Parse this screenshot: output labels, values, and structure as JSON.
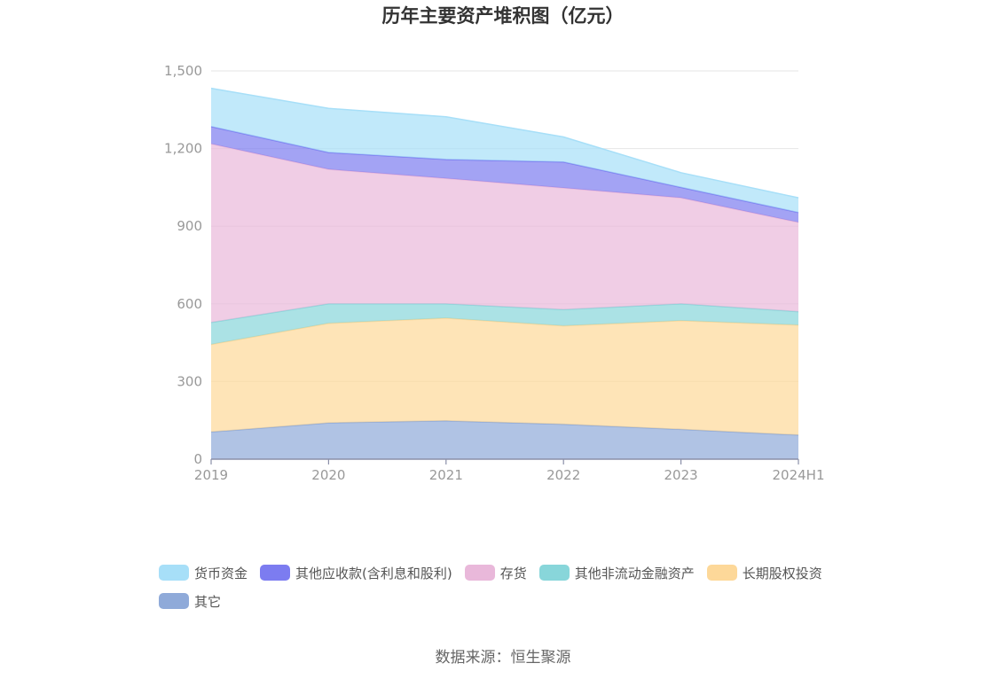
{
  "chart_data": {
    "type": "area",
    "stacked": true,
    "title": "历年主要资产堆积图（亿元）",
    "xlabel": "",
    "ylabel": "",
    "categories": [
      "2019",
      "2020",
      "2021",
      "2022",
      "2023",
      "2024H1"
    ],
    "y_ticks": [
      "0",
      "300",
      "600",
      "900",
      "1,200",
      "1,500"
    ],
    "ylim": [
      0,
      1500
    ],
    "grid": true,
    "legend_position": "bottom",
    "series": [
      {
        "name": "其它",
        "color": "#8faad9",
        "values": [
          105,
          140,
          148,
          135,
          115,
          93
        ]
      },
      {
        "name": "长期股权投资",
        "color": "#fdd899",
        "values": [
          338,
          385,
          397,
          380,
          420,
          425
        ]
      },
      {
        "name": "其他非流动金融资产",
        "color": "#88d6da",
        "values": [
          85,
          75,
          55,
          63,
          65,
          52
        ]
      },
      {
        "name": "存货",
        "color": "#e9b8da",
        "values": [
          690,
          520,
          485,
          470,
          410,
          345
        ]
      },
      {
        "name": "其他应收款(含利息和股利)",
        "color": "#7c7cf0",
        "values": [
          67,
          65,
          73,
          100,
          40,
          38
        ]
      },
      {
        "name": "货币资金",
        "color": "#a7dff8",
        "values": [
          148,
          170,
          165,
          97,
          57,
          57
        ]
      }
    ],
    "legend_order": [
      "货币资金",
      "其他应收款(含利息和股利)",
      "存货",
      "其他非流动金融资产",
      "长期股权投资",
      "其它"
    ]
  },
  "source_text": "数据来源：恒生聚源"
}
